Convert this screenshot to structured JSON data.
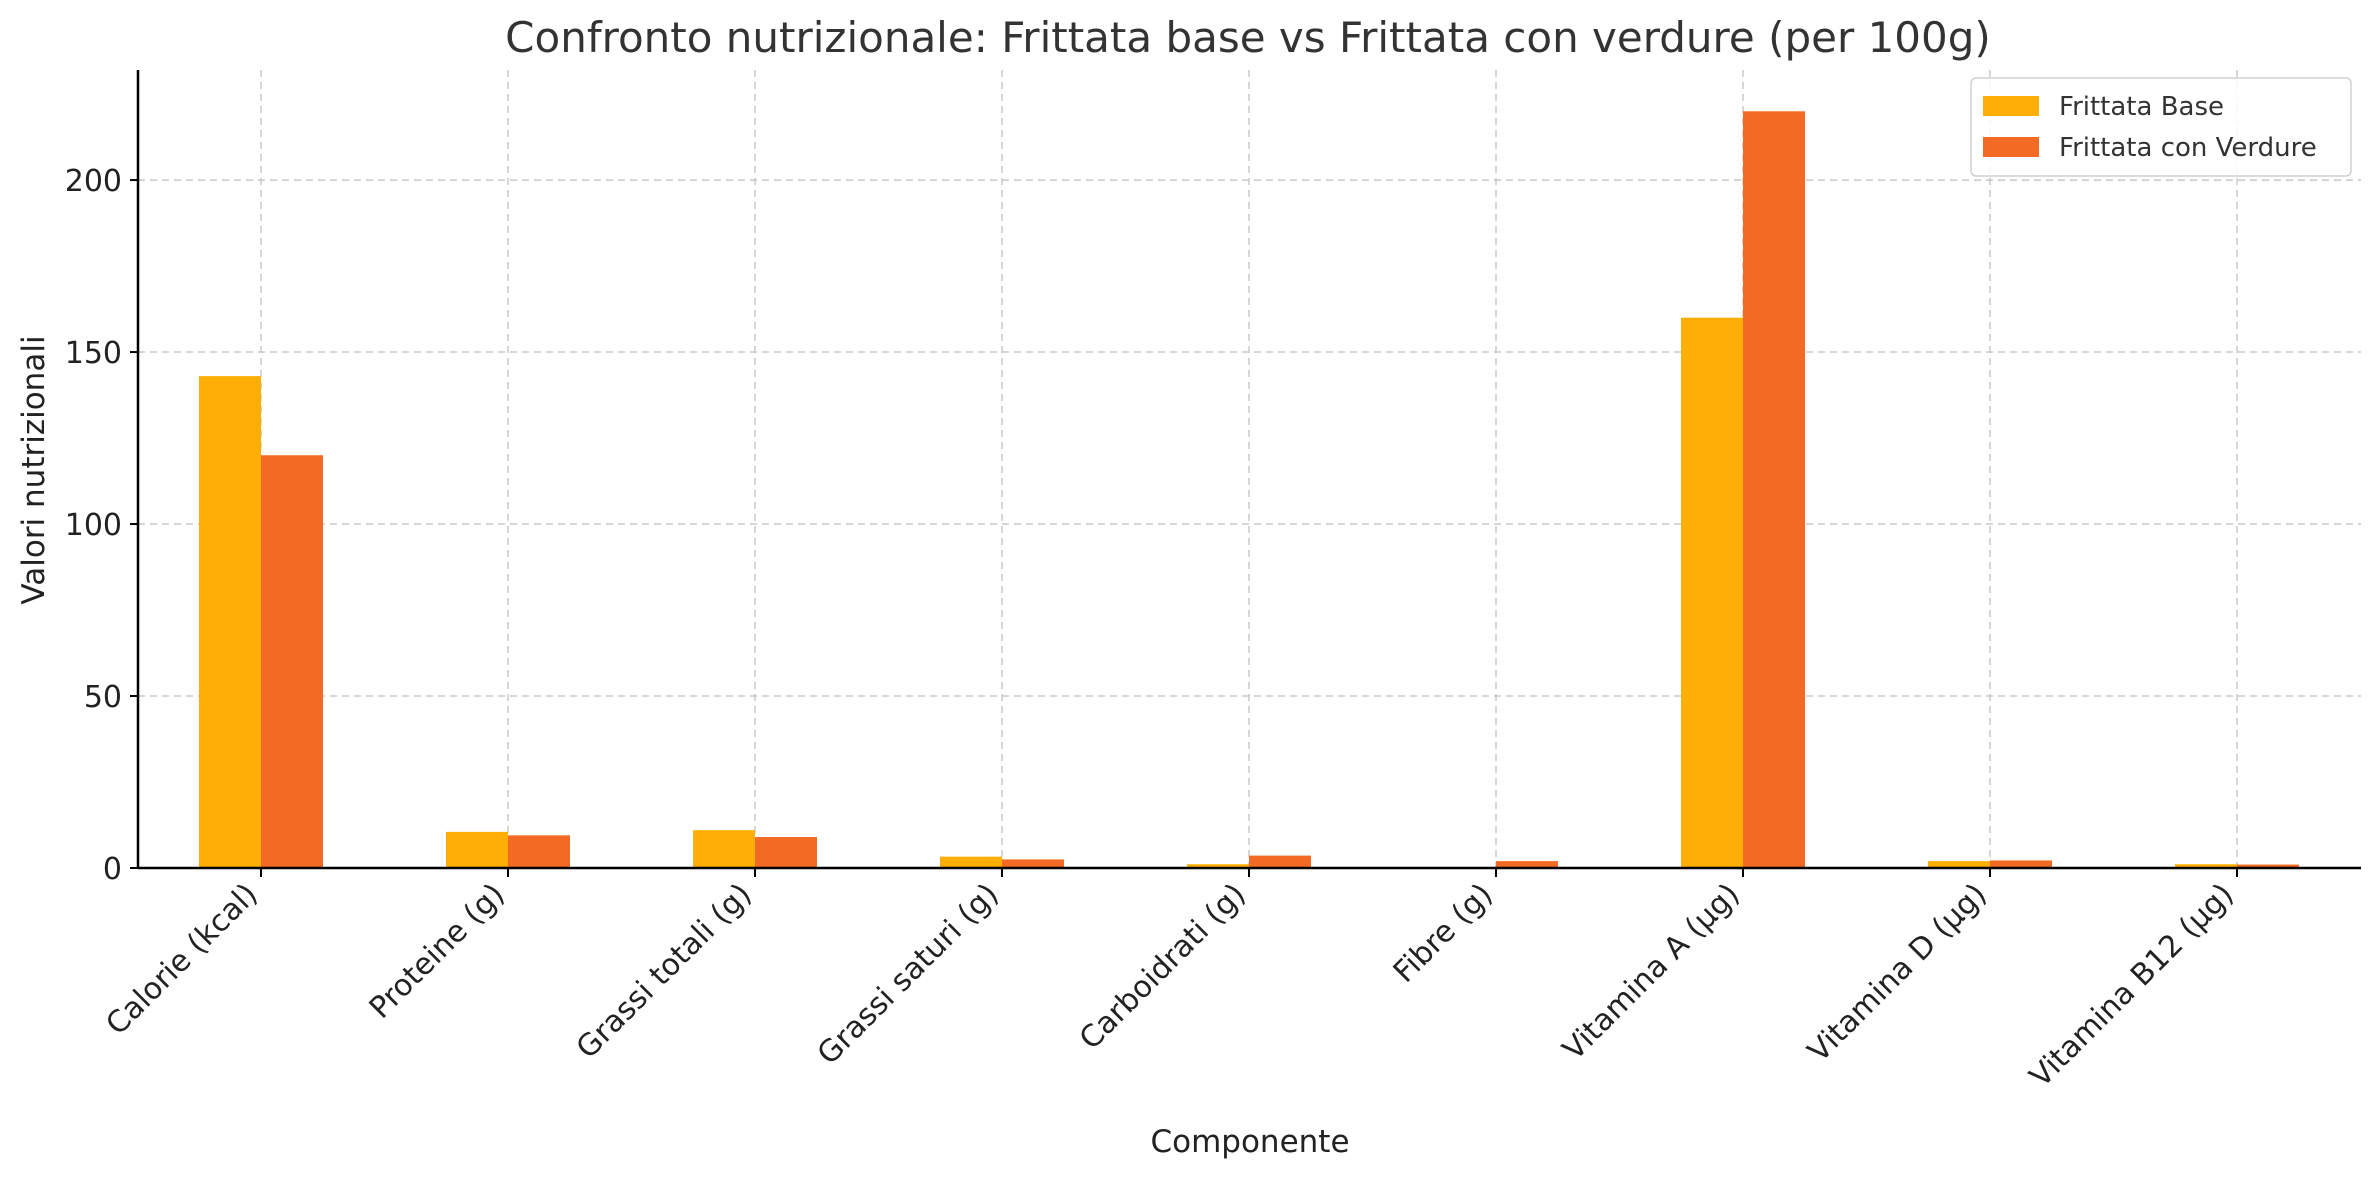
{
  "chart_data": {
    "type": "bar",
    "title": "Confronto nutrizionale: Frittata base vs Frittata con verdure (per 100g)",
    "xlabel": "Componente",
    "ylabel": "Valori nutrizionali",
    "categories": [
      "Calorie (kcal)",
      "Proteine (g)",
      "Grassi totali (g)",
      "Grassi saturi (g)",
      "Carboidrati (g)",
      "Fibre (g)",
      "Vitamina A (µg)",
      "Vitamina D (µg)",
      "Vitamina B12 (µg)"
    ],
    "series": [
      {
        "name": "Frittata Base",
        "color": "#FFAE05",
        "values": [
          143,
          10.5,
          11,
          3.3,
          1.1,
          0,
          160,
          2.0,
          1.1
        ]
      },
      {
        "name": "Frittata con Verdure",
        "color": "#F26A23",
        "values": [
          120,
          9.5,
          9,
          2.5,
          3.6,
          2.0,
          220,
          2.2,
          1.0
        ]
      }
    ],
    "ylim": [
      0,
      232
    ],
    "yticks": [
      0,
      50,
      100,
      150,
      200
    ],
    "grid": true,
    "legend": "top-right"
  }
}
